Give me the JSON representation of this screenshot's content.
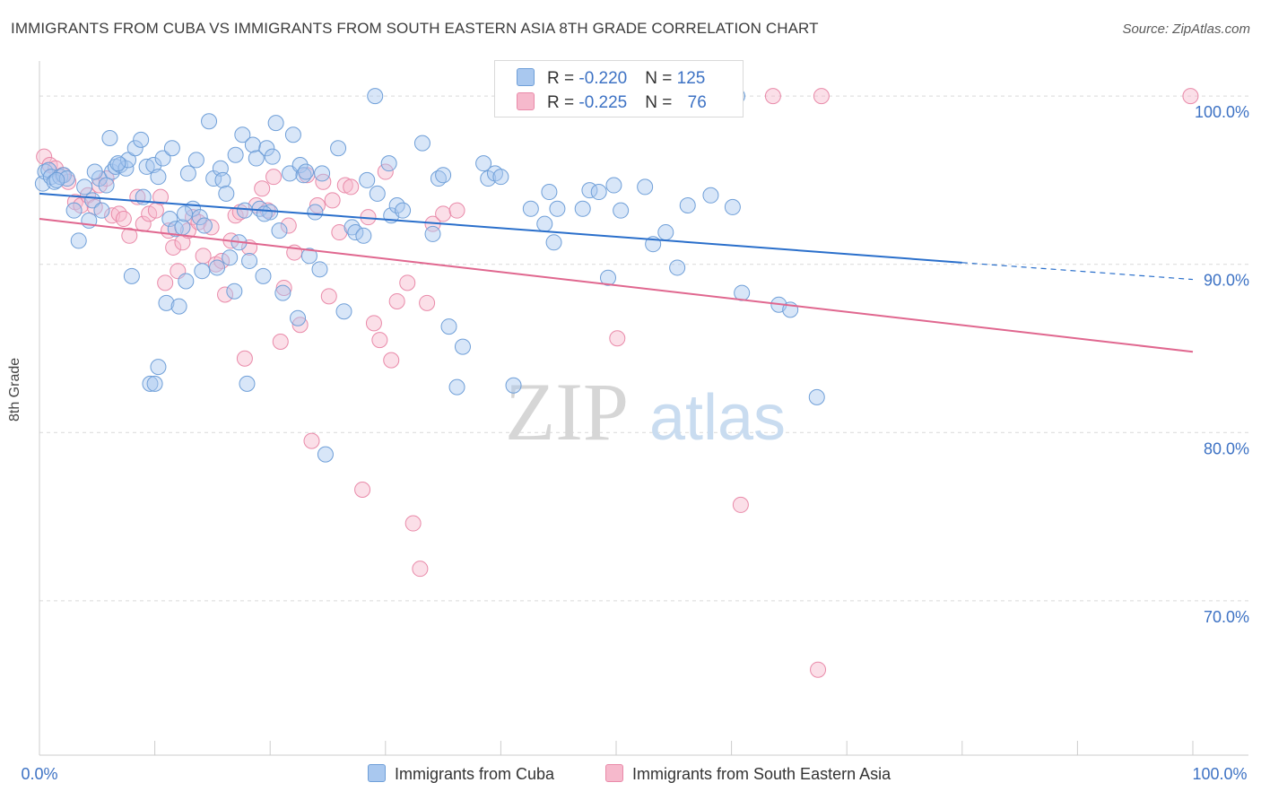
{
  "header": {
    "title": "IMMIGRANTS FROM CUBA VS IMMIGRANTS FROM SOUTH EASTERN ASIA 8TH GRADE CORRELATION CHART",
    "source": "Source: ZipAtlas.com"
  },
  "watermark": {
    "zip": "ZIP",
    "atlas": "atlas"
  },
  "legend": {
    "rows": [
      {
        "r_label": "R = ",
        "r_value": "-0.220",
        "n_label": "N = ",
        "n_value": "125"
      },
      {
        "r_label": "R = ",
        "r_value": "-0.225",
        "n_label": "N = ",
        "n_value": "76"
      }
    ]
  },
  "colors": {
    "blue_fill": "#a9c8ef",
    "blue_stroke": "#6f9fd8",
    "blue_line": "#2a6fcb",
    "pink_fill": "#f6b9cc",
    "pink_stroke": "#e98aa9",
    "pink_line": "#e0678f",
    "axis_text": "#3d72c4",
    "grid": "#d9d9d9"
  },
  "chart_data": {
    "type": "scatter",
    "title": "IMMIGRANTS FROM CUBA VS IMMIGRANTS FROM SOUTH EASTERN ASIA 8TH GRADE CORRELATION CHART",
    "xlabel": "",
    "ylabel": "8th Grade",
    "xlim": [
      0,
      100
    ],
    "ylim": [
      60.5,
      101.5
    ],
    "x_tick_labels": [
      "0.0%",
      "100.0%"
    ],
    "y_ticks": [
      100,
      90,
      80,
      70
    ],
    "y_tick_labels": [
      "100.0%",
      "90.0%",
      "80.0%",
      "70.0%"
    ],
    "grid": true,
    "legend_position": "top-center",
    "series": [
      {
        "name": "Immigrants from Cuba",
        "color": "#a9c8ef",
        "trend": {
          "x0": 0,
          "y0": 94.2,
          "x1": 80,
          "y1": 90.1,
          "dashed_to_x": 100,
          "dashed_to_y": 89.1
        },
        "points": [
          [
            0.3,
            94.8
          ],
          [
            0.5,
            95.5
          ],
          [
            0.8,
            95.6
          ],
          [
            1.0,
            95.2
          ],
          [
            1.3,
            94.9
          ],
          [
            1.8,
            95.2
          ],
          [
            2.1,
            95.3
          ],
          [
            2.4,
            95.1
          ],
          [
            3.0,
            93.2
          ],
          [
            3.4,
            91.4
          ],
          [
            3.9,
            94.6
          ],
          [
            4.3,
            92.6
          ],
          [
            4.6,
            93.8
          ],
          [
            5.2,
            95.1
          ],
          [
            5.4,
            93.2
          ],
          [
            5.8,
            94.7
          ],
          [
            6.1,
            97.5
          ],
          [
            6.3,
            95.5
          ],
          [
            6.6,
            95.8
          ],
          [
            7.0,
            95.9
          ],
          [
            7.5,
            95.7
          ],
          [
            7.7,
            96.2
          ],
          [
            8.0,
            89.3
          ],
          [
            8.3,
            96.9
          ],
          [
            8.8,
            97.4
          ],
          [
            9.0,
            94.0
          ],
          [
            9.3,
            95.8
          ],
          [
            9.6,
            82.9
          ],
          [
            9.9,
            95.9
          ],
          [
            10.0,
            82.9
          ],
          [
            10.3,
            83.9
          ],
          [
            10.7,
            96.3
          ],
          [
            11.0,
            87.7
          ],
          [
            11.3,
            92.7
          ],
          [
            11.5,
            96.9
          ],
          [
            11.8,
            92.1
          ],
          [
            12.1,
            87.5
          ],
          [
            12.4,
            92.2
          ],
          [
            12.7,
            89.0
          ],
          [
            12.9,
            95.4
          ],
          [
            13.3,
            93.3
          ],
          [
            13.6,
            96.2
          ],
          [
            13.9,
            92.8
          ],
          [
            14.1,
            89.6
          ],
          [
            14.3,
            92.3
          ],
          [
            14.7,
            98.5
          ],
          [
            15.1,
            95.1
          ],
          [
            15.4,
            89.8
          ],
          [
            15.7,
            95.7
          ],
          [
            15.9,
            95.0
          ],
          [
            16.2,
            94.2
          ],
          [
            16.5,
            90.4
          ],
          [
            16.9,
            88.4
          ],
          [
            17.0,
            96.5
          ],
          [
            17.3,
            91.3
          ],
          [
            17.6,
            97.7
          ],
          [
            17.8,
            93.2
          ],
          [
            18.0,
            82.9
          ],
          [
            18.2,
            90.2
          ],
          [
            18.5,
            97.1
          ],
          [
            18.8,
            96.3
          ],
          [
            19.1,
            93.3
          ],
          [
            19.4,
            89.3
          ],
          [
            19.7,
            96.9
          ],
          [
            20.0,
            93.1
          ],
          [
            20.2,
            96.4
          ],
          [
            20.5,
            98.4
          ],
          [
            20.8,
            92.0
          ],
          [
            21.1,
            88.3
          ],
          [
            21.7,
            95.4
          ],
          [
            22.0,
            97.7
          ],
          [
            22.4,
            86.8
          ],
          [
            22.6,
            95.9
          ],
          [
            22.9,
            95.3
          ],
          [
            23.1,
            95.5
          ],
          [
            23.4,
            90.5
          ],
          [
            23.9,
            93.1
          ],
          [
            24.3,
            89.7
          ],
          [
            24.5,
            95.4
          ],
          [
            24.8,
            78.7
          ],
          [
            25.9,
            96.9
          ],
          [
            27.1,
            92.2
          ],
          [
            27.4,
            91.9
          ],
          [
            28.1,
            91.7
          ],
          [
            28.4,
            95.0
          ],
          [
            29.1,
            100.0
          ],
          [
            29.3,
            94.2
          ],
          [
            30.3,
            96.0
          ],
          [
            30.5,
            92.9
          ],
          [
            31.0,
            93.5
          ],
          [
            31.5,
            93.2
          ],
          [
            33.2,
            97.2
          ],
          [
            34.1,
            91.8
          ],
          [
            34.6,
            95.1
          ],
          [
            35.0,
            95.3
          ],
          [
            35.5,
            86.3
          ],
          [
            36.2,
            82.7
          ],
          [
            36.7,
            85.1
          ],
          [
            38.5,
            96.0
          ],
          [
            38.9,
            95.1
          ],
          [
            39.5,
            95.4
          ],
          [
            40.0,
            95.2
          ],
          [
            41.1,
            82.8
          ],
          [
            42.6,
            93.3
          ],
          [
            43.8,
            92.4
          ],
          [
            44.2,
            94.3
          ],
          [
            44.6,
            91.3
          ],
          [
            44.9,
            93.3
          ],
          [
            47.1,
            93.3
          ],
          [
            47.7,
            94.4
          ],
          [
            48.5,
            94.3
          ],
          [
            49.3,
            89.2
          ],
          [
            49.8,
            94.7
          ],
          [
            50.4,
            93.2
          ],
          [
            52.5,
            94.6
          ],
          [
            53.2,
            91.2
          ],
          [
            54.3,
            91.9
          ],
          [
            55.3,
            89.8
          ],
          [
            56.2,
            93.5
          ],
          [
            58.2,
            94.1
          ],
          [
            60.1,
            93.4
          ],
          [
            60.5,
            100.0
          ],
          [
            60.9,
            88.3
          ],
          [
            64.1,
            87.6
          ],
          [
            65.1,
            87.3
          ],
          [
            67.4,
            82.1
          ],
          [
            10.3,
            95.2
          ],
          [
            26.4,
            87.2
          ],
          [
            6.8,
            96.0
          ],
          [
            12.6,
            93.0
          ],
          [
            19.5,
            93.0
          ],
          [
            1.5,
            95.0
          ],
          [
            4.8,
            95.5
          ]
        ]
      },
      {
        "name": "Immigrants from South Eastern Asia",
        "color": "#f6b9cc",
        "trend": {
          "x0": 0,
          "y0": 92.7,
          "x1": 100,
          "y1": 84.8
        },
        "points": [
          [
            0.4,
            96.4
          ],
          [
            0.9,
            95.9
          ],
          [
            1.4,
            95.7
          ],
          [
            2.0,
            95.3
          ],
          [
            2.5,
            94.9
          ],
          [
            3.1,
            93.7
          ],
          [
            3.6,
            93.5
          ],
          [
            4.2,
            94.1
          ],
          [
            4.8,
            93.4
          ],
          [
            5.2,
            94.7
          ],
          [
            5.8,
            95.1
          ],
          [
            6.3,
            92.9
          ],
          [
            6.9,
            93.0
          ],
          [
            7.3,
            92.7
          ],
          [
            7.8,
            91.7
          ],
          [
            8.5,
            94.0
          ],
          [
            9.0,
            92.4
          ],
          [
            9.5,
            93.0
          ],
          [
            10.1,
            93.2
          ],
          [
            10.5,
            94.0
          ],
          [
            10.9,
            88.9
          ],
          [
            11.2,
            92.0
          ],
          [
            11.6,
            91.0
          ],
          [
            12.0,
            89.6
          ],
          [
            12.4,
            91.3
          ],
          [
            12.9,
            92.0
          ],
          [
            13.3,
            92.8
          ],
          [
            13.8,
            92.5
          ],
          [
            14.2,
            90.5
          ],
          [
            14.9,
            92.2
          ],
          [
            15.3,
            90.0
          ],
          [
            15.8,
            90.2
          ],
          [
            16.1,
            88.2
          ],
          [
            16.6,
            91.4
          ],
          [
            17.0,
            92.9
          ],
          [
            17.4,
            93.1
          ],
          [
            17.8,
            84.4
          ],
          [
            18.2,
            91.0
          ],
          [
            18.8,
            93.5
          ],
          [
            19.3,
            94.5
          ],
          [
            19.8,
            93.2
          ],
          [
            20.3,
            95.2
          ],
          [
            20.9,
            85.4
          ],
          [
            21.2,
            88.6
          ],
          [
            21.6,
            92.3
          ],
          [
            22.1,
            90.7
          ],
          [
            22.6,
            86.4
          ],
          [
            23.2,
            95.3
          ],
          [
            23.6,
            79.5
          ],
          [
            24.1,
            93.5
          ],
          [
            24.6,
            94.9
          ],
          [
            25.1,
            88.1
          ],
          [
            25.4,
            93.8
          ],
          [
            26.0,
            91.9
          ],
          [
            26.5,
            94.7
          ],
          [
            27.0,
            94.6
          ],
          [
            28.0,
            76.6
          ],
          [
            28.5,
            92.8
          ],
          [
            29.0,
            86.5
          ],
          [
            29.5,
            85.5
          ],
          [
            30.0,
            95.5
          ],
          [
            30.5,
            84.3
          ],
          [
            31.0,
            87.8
          ],
          [
            31.9,
            88.9
          ],
          [
            32.4,
            74.6
          ],
          [
            33.0,
            71.9
          ],
          [
            33.6,
            87.7
          ],
          [
            34.1,
            92.4
          ],
          [
            35.0,
            93.0
          ],
          [
            36.2,
            93.2
          ],
          [
            50.1,
            85.6
          ],
          [
            60.8,
            75.7
          ],
          [
            63.6,
            100.0
          ],
          [
            67.5,
            65.9
          ],
          [
            67.8,
            100.0
          ],
          [
            99.8,
            100.0
          ]
        ]
      }
    ]
  },
  "bottom_legend": {
    "cuba": "Immigrants from Cuba",
    "sea": "Immigrants from South Eastern Asia"
  }
}
